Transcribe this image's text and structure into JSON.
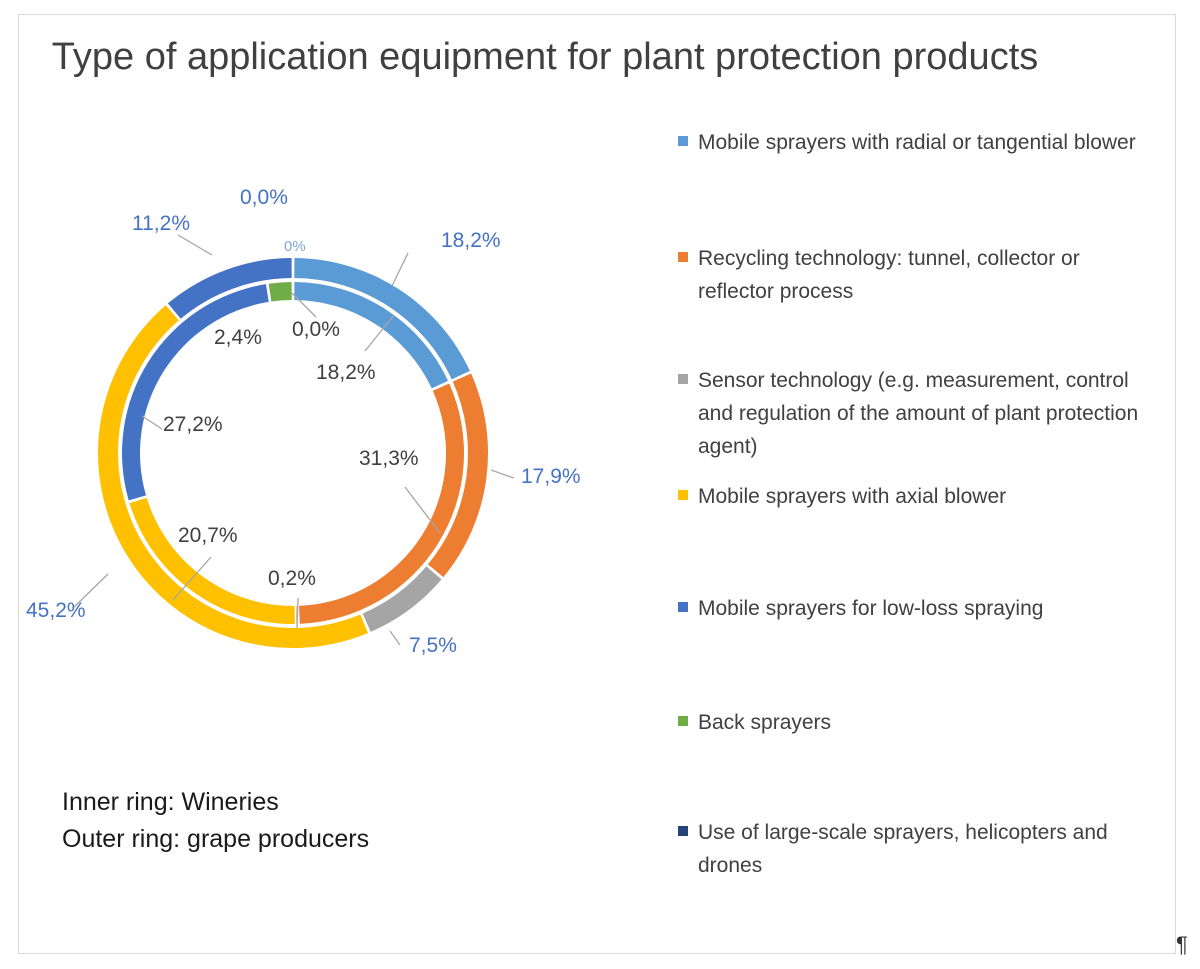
{
  "chart_data": {
    "type": "donut",
    "title": "Type of application equipment for plant protection products",
    "categories": [
      "Mobile sprayers with radial or tangential blower",
      "Recycling technology: tunnel, collector or reflector process",
      "Sensor technology (e.g. measurement, control and regulation of the amount of plant protection agent)",
      "Mobile sprayers with axial blower",
      "Mobile sprayers for low-loss spraying",
      "Back sprayers",
      "Use of large-scale sprayers, helicopters and drones"
    ],
    "series": [
      {
        "name": "Wineries",
        "ring": "inner",
        "values": [
          18.2,
          31.3,
          0.2,
          20.7,
          27.2,
          2.4,
          0.0
        ],
        "labels": [
          "18,2%",
          "31,3%",
          "0,2%",
          "20,7%",
          "27,2%",
          "2,4%",
          "0,0%"
        ]
      },
      {
        "name": "grape producers",
        "ring": "outer",
        "values": [
          18.2,
          17.9,
          7.5,
          45.2,
          11.2,
          0.0,
          0.0
        ],
        "labels": [
          "18,2%",
          "17,9%",
          "7,5%",
          "45,2%",
          "11,2%",
          "0,0%",
          "0%"
        ]
      }
    ],
    "colors": [
      "#5B9BD5",
      "#ED7D31",
      "#A5A5A5",
      "#FFC000",
      "#4472C4",
      "#70AD47",
      "#264478"
    ],
    "inner_label_color": "#404040",
    "outer_label_color": "#4472C4",
    "legend_position": "right"
  },
  "notes": {
    "inner_ring": "Inner ring: Wineries",
    "outer_ring": "Outer ring: grape producers"
  },
  "pilcrow": "¶"
}
